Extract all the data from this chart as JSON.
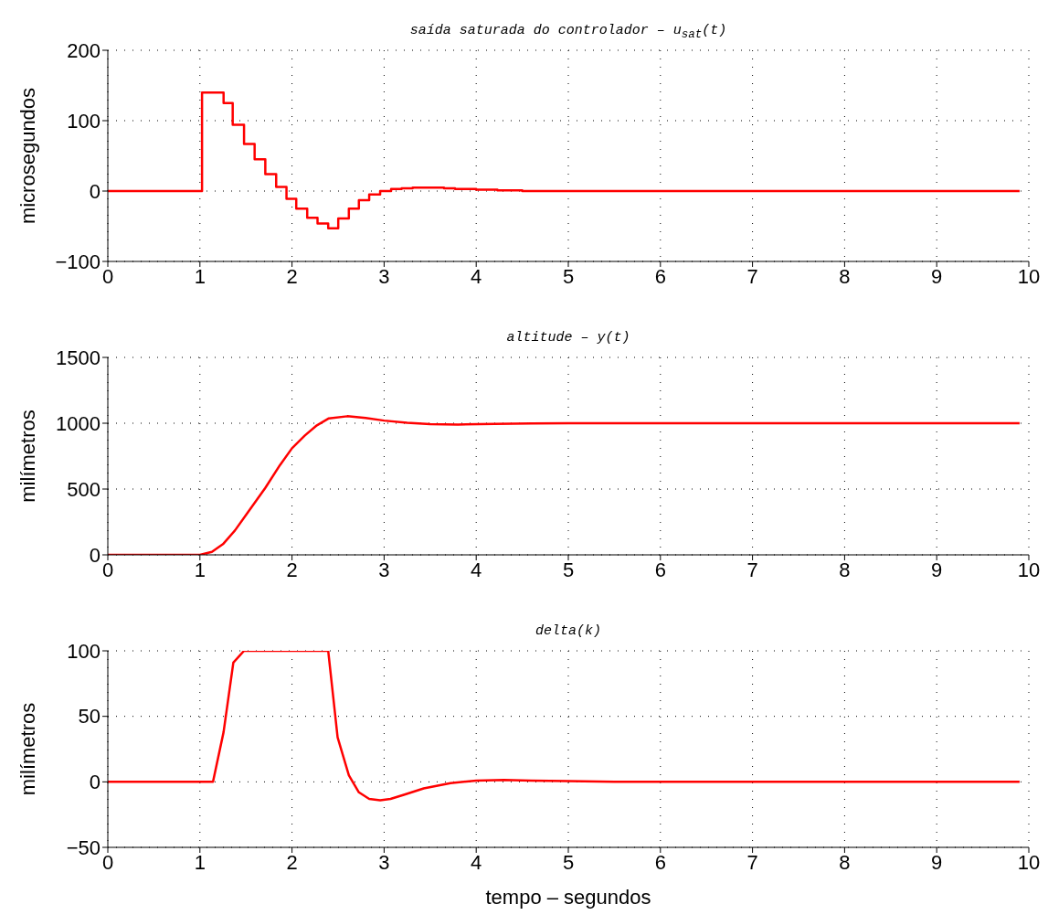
{
  "chart_data": [
    {
      "type": "step",
      "title": "saída saturada do controlador – u$_{sat}$(t)",
      "ylabel": "microsegundos",
      "color": "#ff0000",
      "x": [
        0,
        1.023,
        1.257,
        1.356,
        1.479,
        1.594,
        1.71,
        1.828,
        1.94,
        2.046,
        2.165,
        2.277,
        2.393,
        2.502,
        2.617,
        2.726,
        2.838,
        2.957,
        3.076,
        3.19,
        3.31,
        3.42,
        3.54,
        3.65,
        3.77,
        3.88,
        4.0,
        4.23,
        4.5,
        4.8,
        9.9
      ],
      "values": [
        0,
        140,
        125,
        94,
        67,
        45,
        24,
        6,
        -11,
        -25,
        -38,
        -46,
        -53,
        -39,
        -25,
        -13,
        -5,
        0,
        3,
        4,
        5,
        5,
        5,
        4,
        3,
        3,
        2,
        1,
        0,
        0,
        0
      ],
      "xlim": [
        0,
        10
      ],
      "xticks": [
        0,
        1,
        2,
        3,
        4,
        5,
        6,
        7,
        8,
        9,
        10
      ],
      "ylim": [
        -100,
        200
      ],
      "yticks": [
        {
          "value": -100,
          "label": "−100"
        },
        0,
        100,
        200
      ],
      "grid": true
    },
    {
      "type": "line",
      "title": "altitude – y(t)",
      "ylabel": "milímetros",
      "color": "#ff0000",
      "x": [
        0,
        1.0,
        1.13,
        1.25,
        1.38,
        1.51,
        1.71,
        1.87,
        2.0,
        2.14,
        2.27,
        2.4,
        2.6,
        2.8,
        3.0,
        3.25,
        3.5,
        3.8,
        4.2,
        4.6,
        5.0,
        9.9
      ],
      "values": [
        0,
        0,
        23,
        81,
        185,
        312,
        509,
        683,
        810,
        907,
        984,
        1037,
        1053,
        1040,
        1020,
        1003,
        993,
        990,
        994,
        998,
        1000,
        1000
      ],
      "xlim": [
        0,
        10
      ],
      "xticks": [
        0,
        1,
        2,
        3,
        4,
        5,
        6,
        7,
        8,
        9,
        10
      ],
      "ylim": [
        0,
        1500
      ],
      "yticks": [
        0,
        500,
        1000,
        1500
      ],
      "grid": true
    },
    {
      "type": "line",
      "title": "delta(k)",
      "xlabel": "tempo – segundos",
      "ylabel": "milímetros",
      "color": "#ff0000",
      "x": [
        0,
        1.142,
        1.257,
        1.363,
        1.479,
        2.393,
        2.495,
        2.617,
        2.726,
        2.838,
        2.957,
        3.07,
        3.23,
        3.43,
        3.72,
        4.0,
        4.3,
        4.6,
        5.0,
        5.5,
        9.9
      ],
      "values": [
        0,
        0,
        38,
        91,
        100,
        100,
        34,
        5,
        -8,
        -13,
        -14,
        -13,
        -9.5,
        -5,
        -1,
        1,
        1.5,
        1,
        0.5,
        0,
        0
      ],
      "xlim": [
        0,
        10
      ],
      "xticks": [
        0,
        1,
        2,
        3,
        4,
        5,
        6,
        7,
        8,
        9,
        10
      ],
      "ylim": [
        -50,
        100
      ],
      "yticks": [
        {
          "value": -50,
          "label": "−50"
        },
        0,
        50,
        100
      ],
      "grid": true
    }
  ]
}
